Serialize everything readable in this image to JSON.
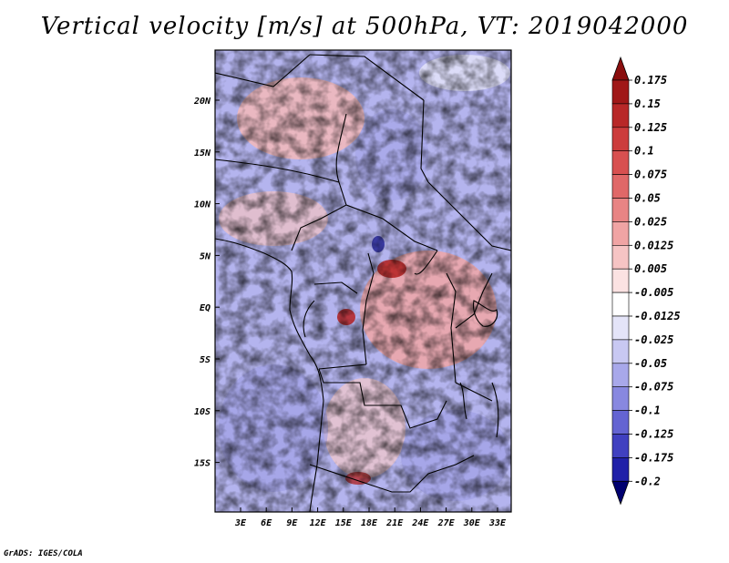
{
  "title": "Vertical velocity [m/s] at 500hPa, VT: 2019042000",
  "footer": "GrADS: IGES/COLA",
  "lat_labels": [
    "20N",
    "15N",
    "10N",
    "5N",
    "EQ",
    "5S",
    "10S",
    "15S"
  ],
  "lon_labels": [
    "3E",
    "6E",
    "9E",
    "12E",
    "15E",
    "18E",
    "21E",
    "24E",
    "27E",
    "30E",
    "33E"
  ],
  "colorbar": {
    "labels": [
      "0.175",
      "0.15",
      "0.125",
      "0.1",
      "0.075",
      "0.05",
      "0.025",
      "0.0125",
      "0.005",
      "-0.005",
      "-0.0125",
      "-0.025",
      "-0.05",
      "-0.075",
      "-0.1",
      "-0.125",
      "-0.175",
      "-0.2"
    ],
    "colors_top_to_bottom": [
      "#a01818",
      "#b82828",
      "#cc3c3c",
      "#d85050",
      "#e06868",
      "#e88484",
      "#f0a4a4",
      "#f6c4c4",
      "#fbe2e2",
      "#ffffff",
      "#e4e4f8",
      "#c8c8f2",
      "#a8a8ea",
      "#8888e0",
      "#6464d2",
      "#4040c0",
      "#2020a8",
      "#0a0a80"
    ],
    "top_arrow_color": "#8a0e0e",
    "bottom_arrow_color": "#000070"
  }
}
